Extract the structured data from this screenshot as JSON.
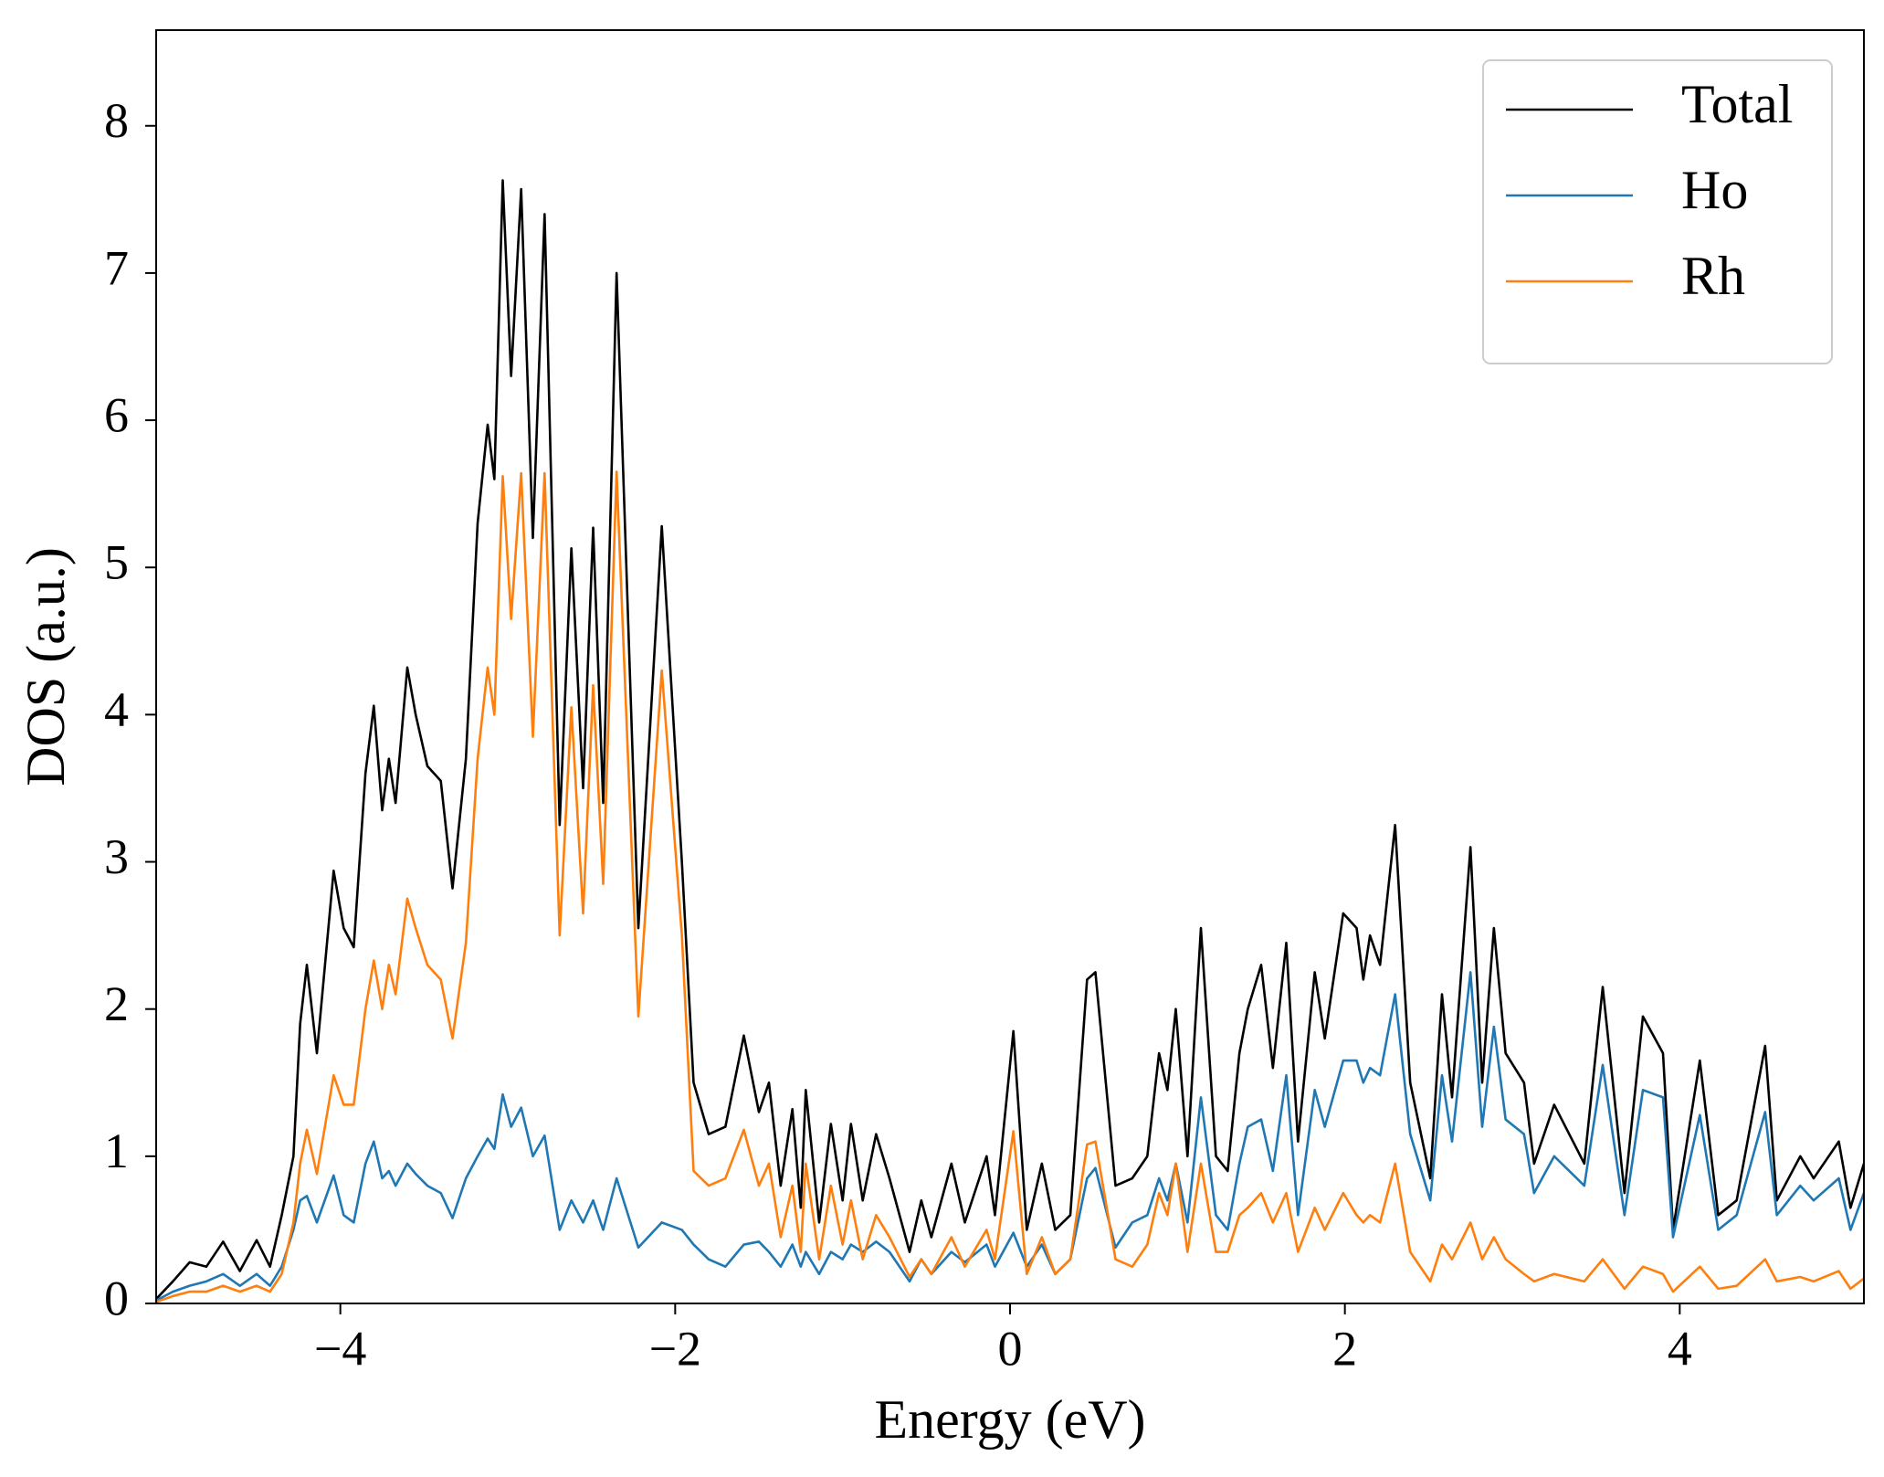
{
  "chart_data": {
    "type": "line",
    "xlabel": "Energy (eV)",
    "ylabel": "DOS (a.u.)",
    "xlim": [
      -5.1,
      5.1
    ],
    "ylim": [
      0,
      8.65
    ],
    "xticks": [
      {
        "value": -4,
        "label": "−4"
      },
      {
        "value": -2,
        "label": "−2"
      },
      0,
      2,
      4
    ],
    "yticks": [
      0,
      1,
      2,
      3,
      4,
      5,
      6,
      7,
      8
    ],
    "grid": false,
    "legend": "upper right",
    "x": [
      -5.1,
      -5.0,
      -4.9,
      -4.8,
      -4.7,
      -4.6,
      -4.5,
      -4.42,
      -4.35,
      -4.28,
      -4.24,
      -4.2,
      -4.14,
      -4.04,
      -3.98,
      -3.92,
      -3.85,
      -3.8,
      -3.75,
      -3.71,
      -3.67,
      -3.6,
      -3.55,
      -3.48,
      -3.4,
      -3.33,
      -3.25,
      -3.18,
      -3.12,
      -3.08,
      -3.03,
      -2.98,
      -2.92,
      -2.85,
      -2.78,
      -2.69,
      -2.62,
      -2.55,
      -2.49,
      -2.43,
      -2.35,
      -2.22,
      -2.08,
      -1.96,
      -1.89,
      -1.8,
      -1.7,
      -1.59,
      -1.5,
      -1.44,
      -1.37,
      -1.3,
      -1.25,
      -1.22,
      -1.14,
      -1.07,
      -1.0,
      -0.95,
      -0.88,
      -0.8,
      -0.72,
      -0.6,
      -0.53,
      -0.47,
      -0.35,
      -0.27,
      -0.14,
      -0.09,
      0.02,
      0.1,
      0.19,
      0.27,
      0.36,
      0.46,
      0.51,
      0.63,
      0.73,
      0.82,
      0.89,
      0.94,
      0.99,
      1.06,
      1.14,
      1.23,
      1.3,
      1.37,
      1.42,
      1.5,
      1.57,
      1.65,
      1.72,
      1.82,
      1.88,
      1.99,
      2.07,
      2.11,
      2.15,
      2.21,
      2.3,
      2.39,
      2.51,
      2.58,
      2.64,
      2.75,
      2.82,
      2.89,
      2.96,
      3.07,
      3.13,
      3.25,
      3.43,
      3.54,
      3.67,
      3.78,
      3.9,
      3.96,
      4.12,
      4.23,
      4.34,
      4.51,
      4.58,
      4.72,
      4.8,
      4.95,
      5.02,
      5.1
    ],
    "series": [
      {
        "name": "Total",
        "color": "#000000",
        "values": [
          0.03,
          0.15,
          0.28,
          0.25,
          0.42,
          0.22,
          0.43,
          0.25,
          0.6,
          1.0,
          1.9,
          2.3,
          1.7,
          2.94,
          2.55,
          2.42,
          3.6,
          4.06,
          3.35,
          3.7,
          3.4,
          4.32,
          4.0,
          3.65,
          3.55,
          2.82,
          3.7,
          5.3,
          5.97,
          5.6,
          7.63,
          6.3,
          7.57,
          5.2,
          7.4,
          3.25,
          5.13,
          3.5,
          5.27,
          3.4,
          7.0,
          2.55,
          5.28,
          3.0,
          1.5,
          1.15,
          1.2,
          1.82,
          1.3,
          1.5,
          0.8,
          1.32,
          0.65,
          1.45,
          0.55,
          1.22,
          0.7,
          1.22,
          0.7,
          1.15,
          0.85,
          0.35,
          0.7,
          0.45,
          0.95,
          0.55,
          1.0,
          0.6,
          1.85,
          0.5,
          0.95,
          0.5,
          0.6,
          2.2,
          2.25,
          0.8,
          0.85,
          1.0,
          1.7,
          1.45,
          2.0,
          1.0,
          2.55,
          1.0,
          0.9,
          1.7,
          2.0,
          2.3,
          1.6,
          2.45,
          1.1,
          2.25,
          1.8,
          2.65,
          2.55,
          2.2,
          2.5,
          2.3,
          3.25,
          1.5,
          0.85,
          2.1,
          1.4,
          3.1,
          1.5,
          2.55,
          1.7,
          1.5,
          0.95,
          1.35,
          0.95,
          2.15,
          0.75,
          1.95,
          1.7,
          0.5,
          1.65,
          0.6,
          0.7,
          1.75,
          0.7,
          1.0,
          0.85,
          1.1,
          0.65,
          0.95
        ]
      },
      {
        "name": "Ho",
        "color": "#1f77b4",
        "values": [
          0.02,
          0.08,
          0.12,
          0.15,
          0.2,
          0.12,
          0.2,
          0.12,
          0.25,
          0.5,
          0.7,
          0.73,
          0.55,
          0.87,
          0.6,
          0.55,
          0.95,
          1.1,
          0.85,
          0.9,
          0.8,
          0.95,
          0.88,
          0.8,
          0.75,
          0.58,
          0.85,
          1.0,
          1.12,
          1.05,
          1.42,
          1.2,
          1.33,
          1.0,
          1.14,
          0.5,
          0.7,
          0.55,
          0.7,
          0.5,
          0.85,
          0.38,
          0.55,
          0.5,
          0.4,
          0.3,
          0.25,
          0.4,
          0.42,
          0.35,
          0.25,
          0.4,
          0.25,
          0.35,
          0.2,
          0.35,
          0.3,
          0.4,
          0.35,
          0.42,
          0.35,
          0.15,
          0.3,
          0.2,
          0.35,
          0.28,
          0.4,
          0.25,
          0.48,
          0.25,
          0.4,
          0.2,
          0.3,
          0.85,
          0.92,
          0.38,
          0.55,
          0.6,
          0.85,
          0.7,
          0.95,
          0.55,
          1.4,
          0.6,
          0.5,
          0.95,
          1.2,
          1.25,
          0.9,
          1.55,
          0.6,
          1.45,
          1.2,
          1.65,
          1.65,
          1.5,
          1.6,
          1.55,
          2.1,
          1.15,
          0.7,
          1.55,
          1.1,
          2.25,
          1.2,
          1.88,
          1.25,
          1.15,
          0.75,
          1.0,
          0.8,
          1.62,
          0.6,
          1.45,
          1.4,
          0.45,
          1.28,
          0.5,
          0.6,
          1.3,
          0.6,
          0.8,
          0.7,
          0.85,
          0.5,
          0.75
        ]
      },
      {
        "name": "Rh",
        "color": "#ff7f0e",
        "values": [
          0.01,
          0.05,
          0.08,
          0.08,
          0.12,
          0.08,
          0.12,
          0.08,
          0.2,
          0.55,
          0.95,
          1.18,
          0.88,
          1.55,
          1.35,
          1.35,
          2.0,
          2.33,
          2.0,
          2.3,
          2.1,
          2.75,
          2.55,
          2.3,
          2.2,
          1.8,
          2.45,
          3.7,
          4.32,
          4.0,
          5.62,
          4.65,
          5.64,
          3.85,
          5.64,
          2.5,
          4.05,
          2.65,
          4.2,
          2.85,
          5.65,
          1.95,
          4.3,
          2.5,
          0.9,
          0.8,
          0.85,
          1.18,
          0.8,
          0.95,
          0.45,
          0.8,
          0.35,
          0.95,
          0.3,
          0.8,
          0.4,
          0.7,
          0.3,
          0.6,
          0.45,
          0.18,
          0.3,
          0.2,
          0.45,
          0.25,
          0.5,
          0.3,
          1.17,
          0.2,
          0.45,
          0.2,
          0.3,
          1.08,
          1.1,
          0.3,
          0.25,
          0.4,
          0.75,
          0.6,
          0.95,
          0.35,
          0.95,
          0.35,
          0.35,
          0.6,
          0.65,
          0.75,
          0.55,
          0.75,
          0.35,
          0.65,
          0.5,
          0.75,
          0.6,
          0.55,
          0.6,
          0.55,
          0.95,
          0.35,
          0.15,
          0.4,
          0.3,
          0.55,
          0.3,
          0.45,
          0.3,
          0.2,
          0.15,
          0.2,
          0.15,
          0.3,
          0.1,
          0.25,
          0.2,
          0.08,
          0.25,
          0.1,
          0.12,
          0.3,
          0.15,
          0.18,
          0.15,
          0.22,
          0.1,
          0.17
        ]
      }
    ]
  }
}
